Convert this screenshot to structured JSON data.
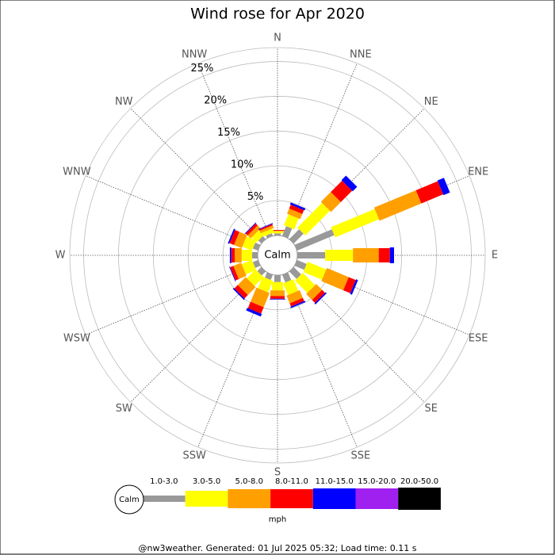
{
  "chart_data": {
    "type": "windrose",
    "title": "Wind rose for Apr 2020",
    "categories": [
      "N",
      "NNE",
      "NE",
      "ENE",
      "E",
      "ESE",
      "SE",
      "SSE",
      "S",
      "SSW",
      "SW",
      "WSW",
      "W",
      "WNW",
      "NW",
      "NNW"
    ],
    "series": [
      {
        "name": "1.0-3.0",
        "color": "#999999",
        "values": [
          0.3,
          1.5,
          2,
          5.8,
          4,
          1.5,
          1.5,
          1.2,
          1,
          0.8,
          0.8,
          0.8,
          0.8,
          0.8,
          0.6,
          0.4
        ]
      },
      {
        "name": "3.0-5.0",
        "color": "#ffff00",
        "values": [
          0.3,
          1.7,
          5,
          6.8,
          4,
          2.9,
          2.5,
          1.8,
          1.2,
          1.8,
          1.8,
          1.6,
          1.5,
          1.5,
          1.0,
          0.6
        ]
      },
      {
        "name": "5.0-8.0",
        "color": "#ffa000",
        "values": [
          0.1,
          0.8,
          2,
          6.5,
          3.7,
          3.4,
          1.2,
          1.2,
          0.8,
          2.2,
          1.6,
          1.2,
          1.0,
          1.2,
          0.6,
          0.4
        ]
      },
      {
        "name": "8.0-11.0",
        "color": "#ff0000",
        "values": [
          0.1,
          0.6,
          2.3,
          3.4,
          1.6,
          1.1,
          0.6,
          0.5,
          0.4,
          1.0,
          0.7,
          0.5,
          0.5,
          0.7,
          0.4,
          0.2
        ]
      },
      {
        "name": "11.0-15.0",
        "color": "#0000ff",
        "values": [
          0,
          0.3,
          0.9,
          1.0,
          0.6,
          0.3,
          0.2,
          0.2,
          0.1,
          0.4,
          0.2,
          0.1,
          0.2,
          0.2,
          0.1,
          0.1
        ]
      },
      {
        "name": "15.0-20.0",
        "color": "#a020f0",
        "values": [
          0,
          0,
          0,
          0,
          0,
          0,
          0,
          0,
          0,
          0,
          0,
          0,
          0,
          0,
          0,
          0
        ]
      },
      {
        "name": "20.0-50.0",
        "color": "#000000",
        "values": [
          0,
          0,
          0,
          0,
          0,
          0,
          0,
          0,
          0,
          0,
          0,
          0,
          0,
          0,
          0,
          0
        ]
      }
    ],
    "ylim": [
      0,
      27
    ],
    "yticks": [
      {
        "value": 5,
        "label": "5%"
      },
      {
        "value": 10,
        "label": "10%"
      },
      {
        "value": 15,
        "label": "15%"
      },
      {
        "value": 20,
        "label": "20%"
      },
      {
        "value": 25,
        "label": "25%"
      }
    ],
    "calm_label": "Calm",
    "legend_unit": "mph",
    "footer": "@nw3weather. Generated: 01 Jul 2025 05:32; Load time: 0.11 s"
  }
}
